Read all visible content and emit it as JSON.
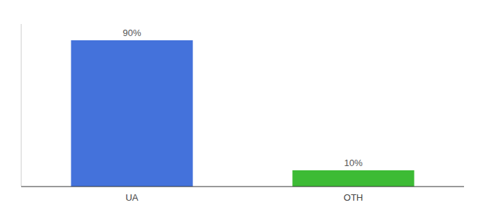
{
  "chart_data": {
    "type": "bar",
    "categories": [
      "UA",
      "OTH"
    ],
    "values": [
      90,
      10
    ],
    "value_labels": [
      "90%",
      "10%"
    ],
    "colors": [
      "#4472db",
      "#3dbb35"
    ],
    "ylim": [
      0,
      100
    ],
    "data_labels": true,
    "tick_labels": "x"
  }
}
